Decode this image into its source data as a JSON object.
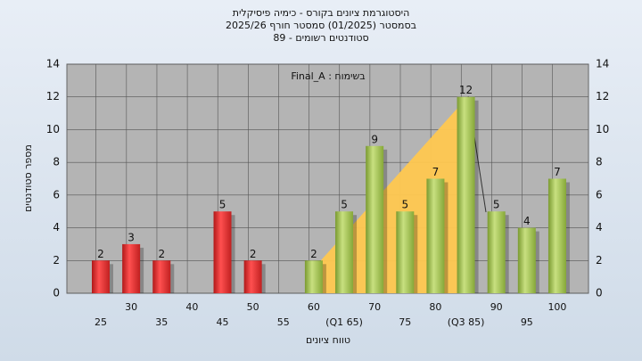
{
  "chart_data": {
    "type": "bar",
    "title": [
      "היסטוגרמת ציונים בקורס - כימיה פיסיקלית",
      "בסמסטר  (01/2025)  סמסטר חורף  2025/26",
      "סטודנטים רשומים - 89"
    ],
    "annotation": "בשימוח : Final_A",
    "x_label": "טווח ציונים",
    "y_label": "מספר סטודנטים",
    "categories": [
      "25",
      "30",
      "35",
      "40",
      "45",
      "50",
      "55",
      "60",
      "(Q1 65)",
      "70",
      "75",
      "80",
      "(Q3 85)",
      "90",
      "95",
      "100"
    ],
    "values": [
      2,
      3,
      2,
      0,
      5,
      2,
      0,
      2,
      5,
      9,
      5,
      7,
      12,
      5,
      4,
      7
    ],
    "colors": [
      "red",
      "red",
      "red",
      "red",
      "red",
      "red",
      "red",
      "green",
      "green",
      "green",
      "green",
      "green",
      "green",
      "green",
      "green",
      "green"
    ],
    "ylim": [
      0,
      14
    ],
    "yticks": [
      0,
      2,
      4,
      6,
      8,
      10,
      12,
      14
    ],
    "grid": true
  }
}
